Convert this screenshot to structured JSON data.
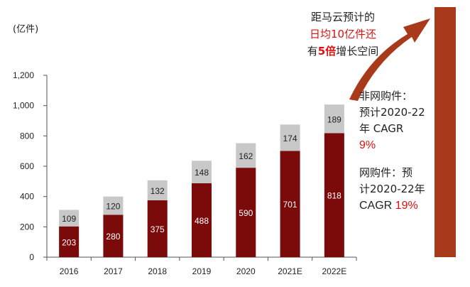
{
  "unit_label": "(亿件)",
  "callout": {
    "line1": "距马云预计的",
    "line2": "日均10亿件还",
    "line3_a": "有",
    "line3_b": "5倍",
    "line3_c": "增长空间"
  },
  "annotation_nononline": {
    "title": "非网购件：",
    "line2": "预计2020-22",
    "line3": "年 CAGR",
    "value": "9%"
  },
  "annotation_online": {
    "title": "网购件：预",
    "line2": "计2020-22年",
    "line3": "CAGR ",
    "value": "19%"
  },
  "colors": {
    "online": "#7b0a0a",
    "nononline": "#c8c8c8",
    "arrow": "#a8391a",
    "highlight": "#e01010"
  },
  "chart_data": {
    "type": "bar",
    "stacked": true,
    "categories": [
      "2016",
      "2017",
      "2018",
      "2019",
      "2020",
      "2021E",
      "2022E"
    ],
    "series": [
      {
        "values": [
          203,
          280,
          375,
          488,
          590,
          701,
          818
        ]
      },
      {
        "values": [
          109,
          120,
          132,
          148,
          162,
          174,
          189
        ]
      }
    ],
    "ylim": [
      0,
      1200
    ],
    "yticks": [
      "0",
      "200",
      "400",
      "600",
      "800",
      "1,000",
      "1,200"
    ],
    "ytick_values": [
      0,
      200,
      400,
      600,
      800,
      1000,
      1200
    ],
    "grid": false
  }
}
